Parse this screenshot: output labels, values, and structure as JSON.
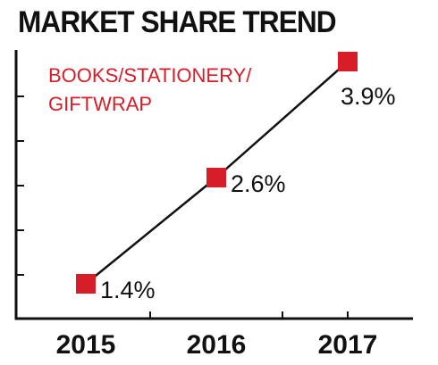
{
  "chart_data": {
    "type": "line",
    "title": "MARKET SHARE TREND",
    "annotation_lines": [
      "BOOKS/STATIONERY/",
      "GIFTWRAP"
    ],
    "categories": [
      "2015",
      "2016",
      "2017"
    ],
    "series": [
      {
        "values": [
          1.4,
          2.6,
          3.9
        ],
        "labels": [
          "1.4%",
          "2.6%",
          "3.9%"
        ],
        "marker": "square"
      }
    ],
    "ylim": [
      1.0,
      4.3
    ],
    "y_tick_count": 6,
    "grid": false,
    "legend": "none",
    "colors": {
      "marker": "#d71e28",
      "line": "#111111",
      "annotation": "#d71e28",
      "text": "#111111",
      "axis": "#111111"
    }
  }
}
